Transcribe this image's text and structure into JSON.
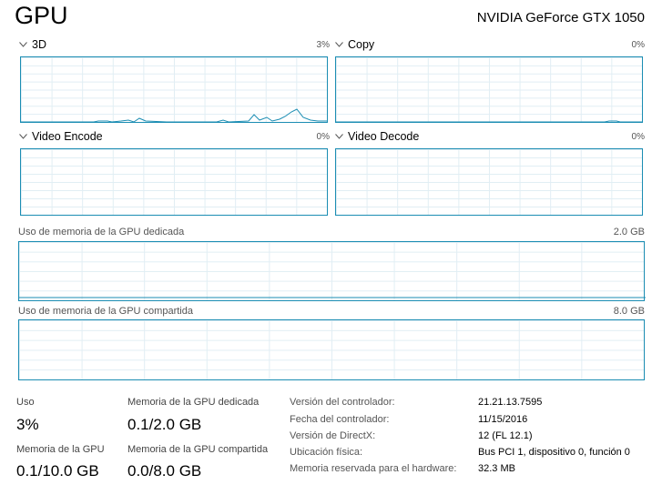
{
  "header": {
    "title": "GPU",
    "gpu_name": "NVIDIA GeForce GTX 1050"
  },
  "engines": [
    {
      "label": "3D",
      "percent": "3%"
    },
    {
      "label": "Copy",
      "percent": "0%"
    },
    {
      "label": "Video Encode",
      "percent": "0%"
    },
    {
      "label": "Video Decode",
      "percent": "0%"
    }
  ],
  "memory_graphs": [
    {
      "label": "Uso de memoria de la GPU dedicada",
      "max": "2.0 GB"
    },
    {
      "label": "Uso de memoria de la GPU compartida",
      "max": "8.0 GB"
    }
  ],
  "stats": [
    {
      "label": "Uso",
      "value": "3%"
    },
    {
      "label": "Memoria de la GPU dedicada",
      "value": "0.1/2.0 GB"
    },
    {
      "label": "Memoria de la GPU",
      "value": "0.1/10.0 GB"
    },
    {
      "label": "Memoria de la GPU compartida",
      "value": "0.0/8.0 GB"
    }
  ],
  "details": [
    {
      "key": "Versión del controlador:",
      "value": "21.21.13.7595"
    },
    {
      "key": "Fecha del controlador:",
      "value": "11/15/2016"
    },
    {
      "key": "Versión de DirectX:",
      "value": "12 (FL 12.1)"
    },
    {
      "key": "Ubicación física:",
      "value": "Bus PCI 1, dispositivo 0, función 0"
    },
    {
      "key": "Memoria reservada para el hardware:",
      "value": "32.3 MB"
    }
  ],
  "colors": {
    "accent": "#1b8db3",
    "grid": "#e1eef4"
  },
  "icons": {
    "collapse": "chevron-down-icon"
  }
}
